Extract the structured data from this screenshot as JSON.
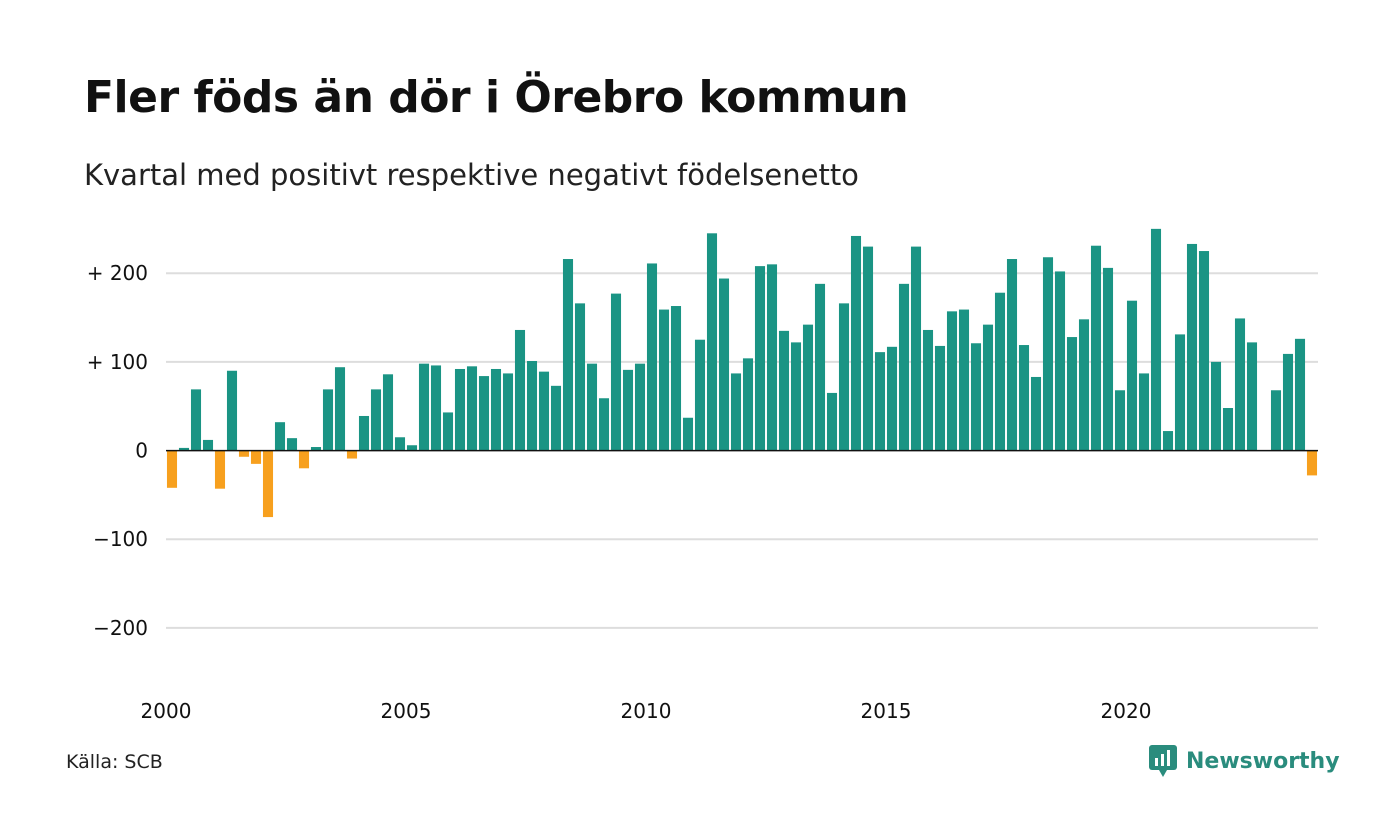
{
  "header": {
    "title": "Fler föds än dör i Örebro kommun",
    "subtitle": "Kvartal med positivt respektive negativt födelsenetto"
  },
  "footer": {
    "source": "Källa: SCB",
    "brand": "Newsworthy",
    "brand_icon": "newsworthy-logo-icon"
  },
  "colors": {
    "positive": "#1a9484",
    "negative": "#f7a01e",
    "grid": "#dddddd",
    "zero_line": "#111111",
    "brand": "#2a8c7d"
  },
  "chart_data": {
    "type": "bar",
    "ylim": [
      -270,
      260
    ],
    "yticks": [
      200,
      100,
      0,
      -100,
      -200
    ],
    "ytick_labels": [
      "+ 200",
      "+ 100",
      "0",
      "−100",
      "−200"
    ],
    "xticks": [
      2000,
      2005,
      2010,
      2015,
      2020
    ],
    "xtick_labels": [
      "2000",
      "2005",
      "2010",
      "2015",
      "2020"
    ],
    "x_start": 2000,
    "periods_per_year": 4,
    "grid": true,
    "legend": "none",
    "values": [
      -42,
      3,
      69,
      12,
      -43,
      90,
      -7,
      -15,
      -75,
      32,
      14,
      -20,
      4,
      69,
      94,
      -9,
      39,
      69,
      86,
      15,
      6,
      98,
      96,
      43,
      92,
      95,
      84,
      92,
      87,
      136,
      101,
      89,
      73,
      216,
      166,
      98,
      59,
      177,
      91,
      98,
      211,
      159,
      163,
      37,
      125,
      245,
      194,
      87,
      104,
      208,
      210,
      135,
      122,
      142,
      188,
      65,
      166,
      242,
      230,
      111,
      117,
      188,
      230,
      136,
      118,
      157,
      159,
      121,
      142,
      178,
      216,
      119,
      83,
      218,
      202,
      128,
      148,
      231,
      206,
      68,
      169,
      87,
      250,
      22,
      131,
      233,
      225,
      100,
      48,
      149,
      122,
      0,
      68,
      109,
      126,
      -28
    ]
  }
}
